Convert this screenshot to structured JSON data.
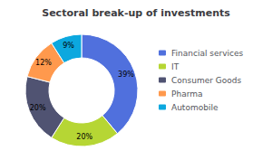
{
  "chart_data": {
    "type": "donut",
    "title": "Sectoral break-up of investments",
    "categories": [
      "Financial services",
      "IT",
      "Consumer Goods",
      "Pharma",
      "Automobile"
    ],
    "values": [
      39,
      20,
      20,
      12,
      9
    ],
    "value_labels": [
      "39%",
      "20%",
      "20%",
      "12%",
      "9%"
    ],
    "data_labels": true,
    "legend": "right"
  }
}
